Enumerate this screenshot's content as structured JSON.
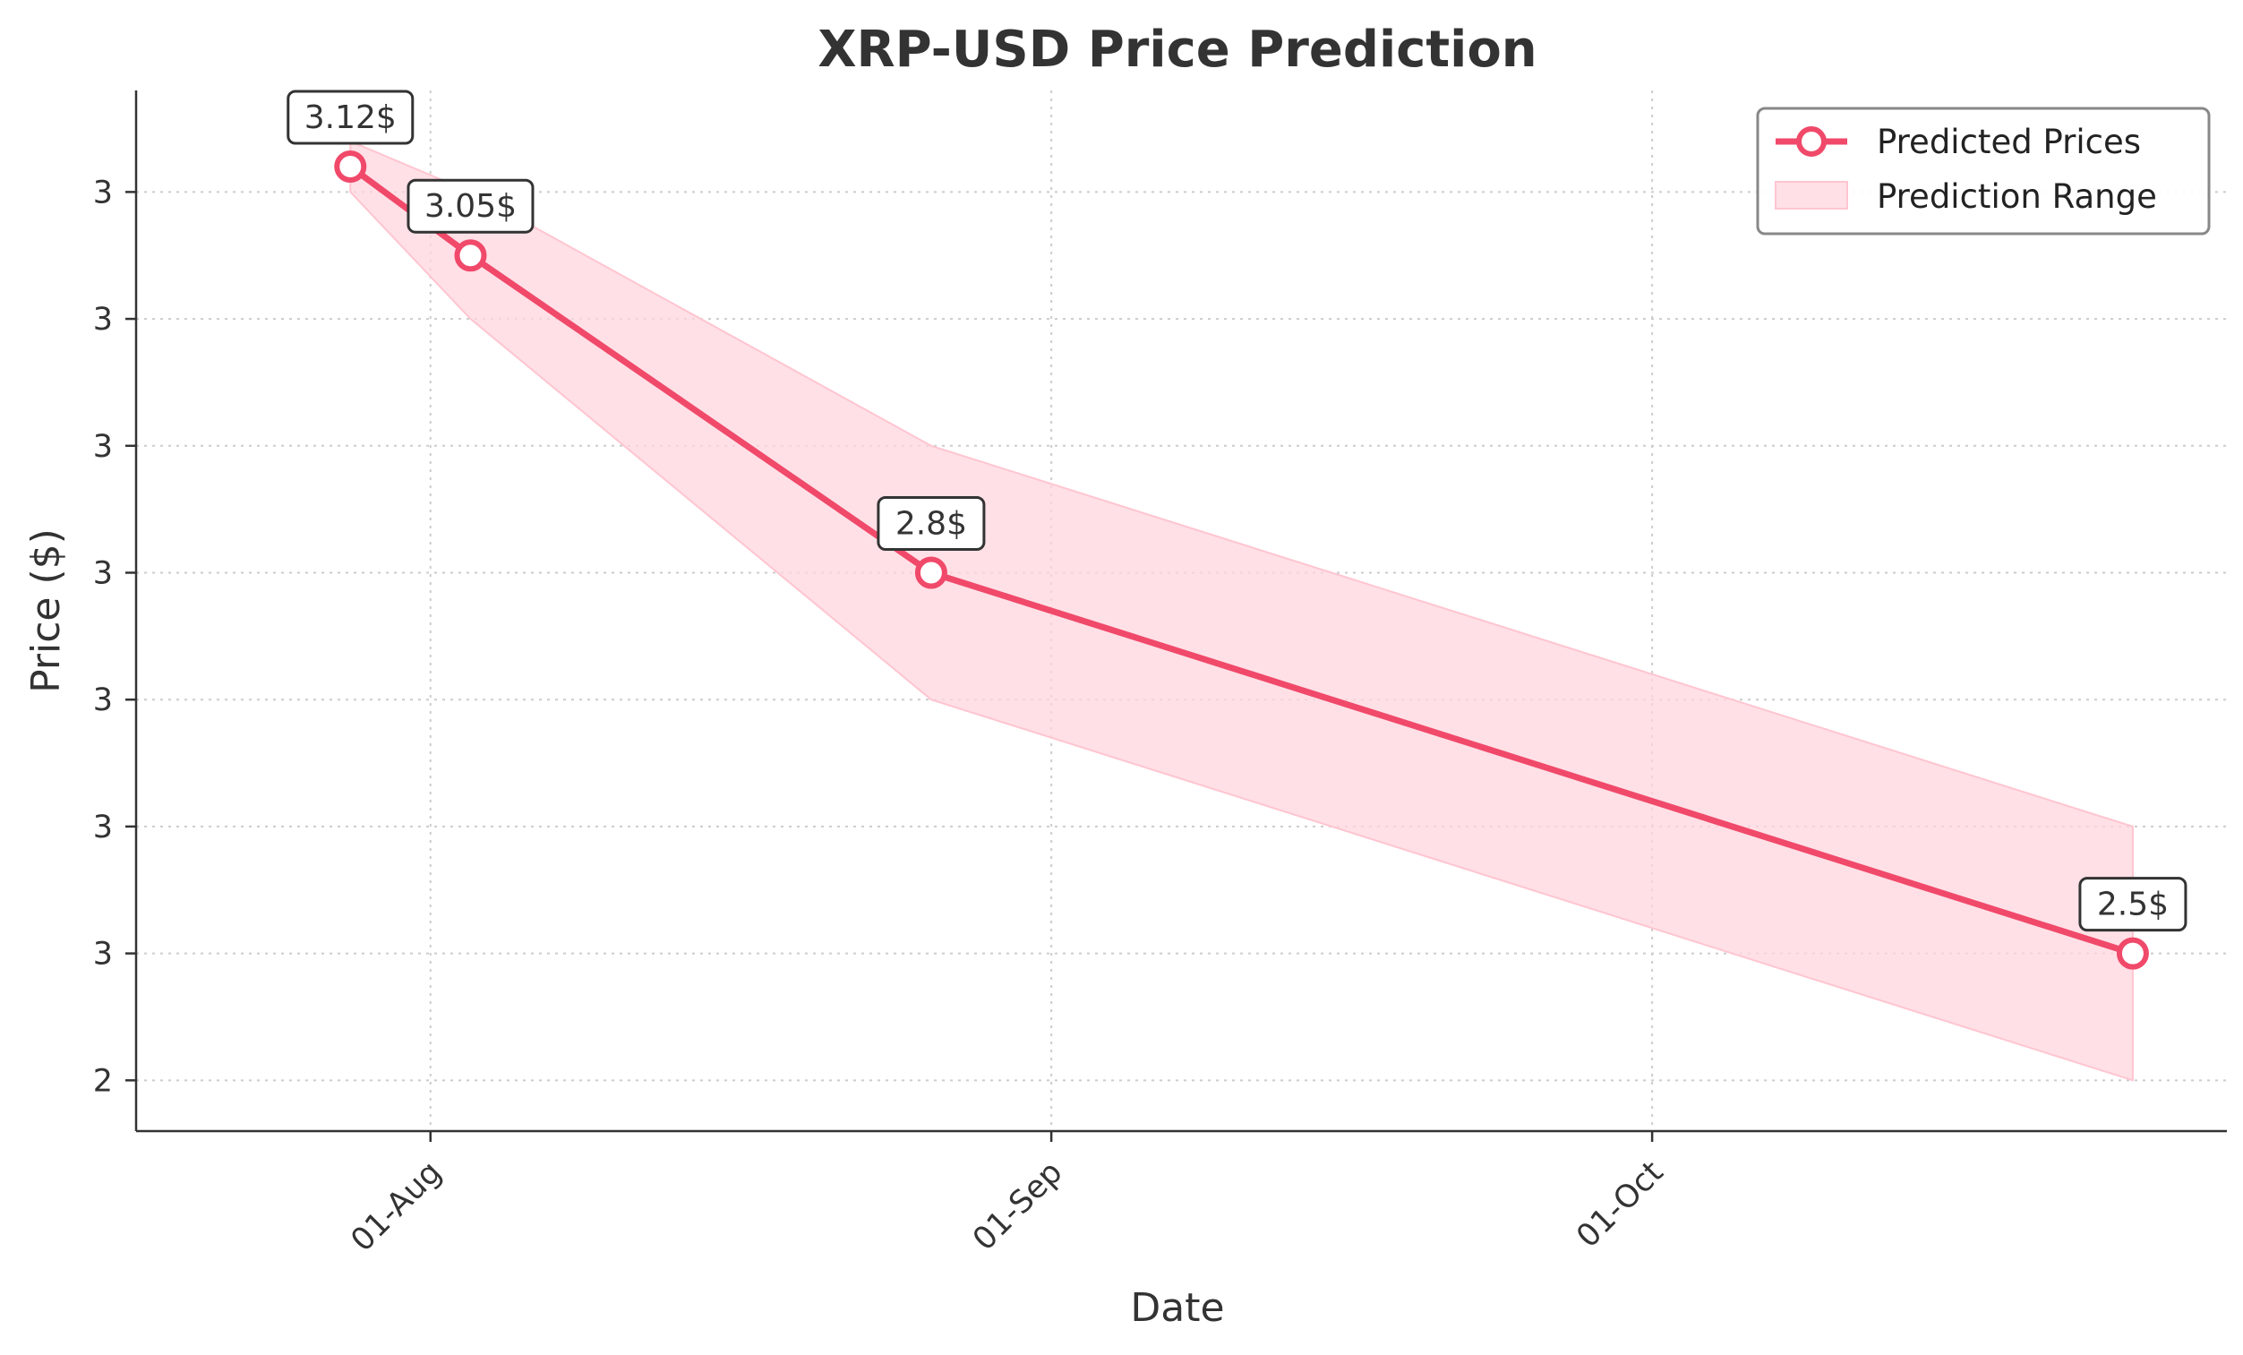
{
  "chart_data": {
    "type": "line",
    "title": "XRP-USD Price Prediction",
    "xlabel": "Date",
    "ylabel": "Price ($)",
    "x": [
      "2024-07-28",
      "2024-08-03",
      "2024-08-26",
      "2024-10-25"
    ],
    "series": [
      {
        "name": "Predicted Prices",
        "values": [
          3.12,
          3.05,
          2.8,
          2.5
        ],
        "color": "#f0496a",
        "marker": "circle-open"
      }
    ],
    "range": {
      "name": "Prediction Range",
      "lower": [
        3.1,
        3.0,
        2.7,
        2.4
      ],
      "upper": [
        3.14,
        3.1,
        2.9,
        2.6
      ],
      "color": "#ffd5dd"
    },
    "data_labels": [
      "3.12$",
      "3.05$",
      "2.8$",
      "2.5$"
    ],
    "x_ticks": [
      {
        "date": "2024-08-01",
        "label": "01-Aug"
      },
      {
        "date": "2024-09-01",
        "label": "01-Sep"
      },
      {
        "date": "2024-10-01",
        "label": "01-Oct"
      }
    ],
    "y_ticks": [
      {
        "value": 3.1,
        "label": "3"
      },
      {
        "value": 3.0,
        "label": "3"
      },
      {
        "value": 2.9,
        "label": "3"
      },
      {
        "value": 2.8,
        "label": "3"
      },
      {
        "value": 2.7,
        "label": "3"
      },
      {
        "value": 2.6,
        "label": "3"
      },
      {
        "value": 2.5,
        "label": "3"
      },
      {
        "value": 2.4,
        "label": "2"
      }
    ],
    "xlim": [
      "2024-07-22",
      "2024-10-25"
    ],
    "ylim": [
      2.36,
      3.18
    ],
    "grid": true,
    "legend_position": "top-right",
    "x_tick_rotation": "45-degrees"
  }
}
